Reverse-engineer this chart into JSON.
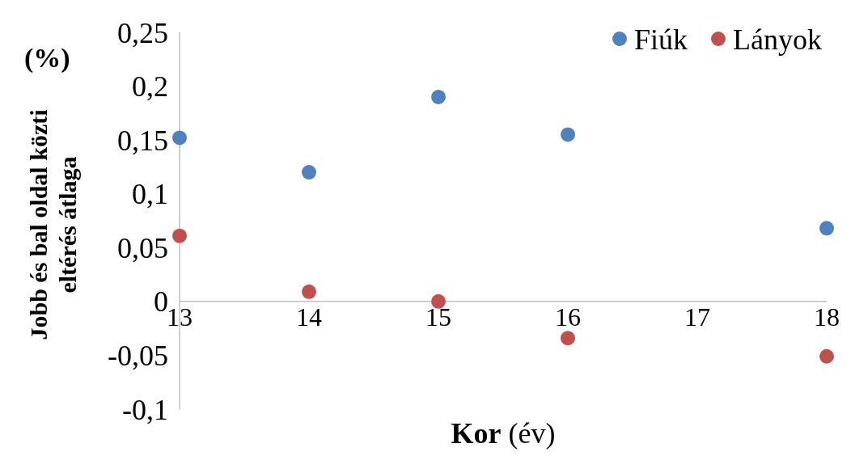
{
  "chart_data": {
    "type": "scatter",
    "xlabel": "Kor (év)",
    "ylabel": "Jobb és bal oldal közti eltérés átlaga",
    "annotations": [
      "(%)"
    ],
    "x": [
      13,
      14,
      15,
      16,
      18
    ],
    "series": [
      {
        "name": "Fiúk",
        "color": "#4f81bd",
        "values": [
          0.152,
          0.12,
          0.19,
          0.155,
          0.068
        ]
      },
      {
        "name": "Lányok",
        "color": "#c0504d",
        "values": [
          0.061,
          0.009,
          0,
          -0.034,
          -0.051
        ]
      }
    ],
    "xlim": [
      13,
      18
    ],
    "xticks": [
      13,
      14,
      15,
      16,
      17,
      18
    ],
    "ylim": [
      -0.1,
      0.25
    ],
    "yticks": [
      {
        "value": -0.1,
        "label": "-0,1"
      },
      {
        "value": -0.05,
        "label": "-0,05"
      },
      {
        "value": 0,
        "label": "0"
      },
      {
        "value": 0.05,
        "label": "0,05"
      },
      {
        "value": 0.1,
        "label": "0,1"
      },
      {
        "value": 0.15,
        "label": "0,15"
      },
      {
        "value": 0.2,
        "label": "0,2"
      },
      {
        "value": 0.25,
        "label": "0,25"
      }
    ],
    "grid": false,
    "legend": "top right",
    "marker": "circle"
  }
}
